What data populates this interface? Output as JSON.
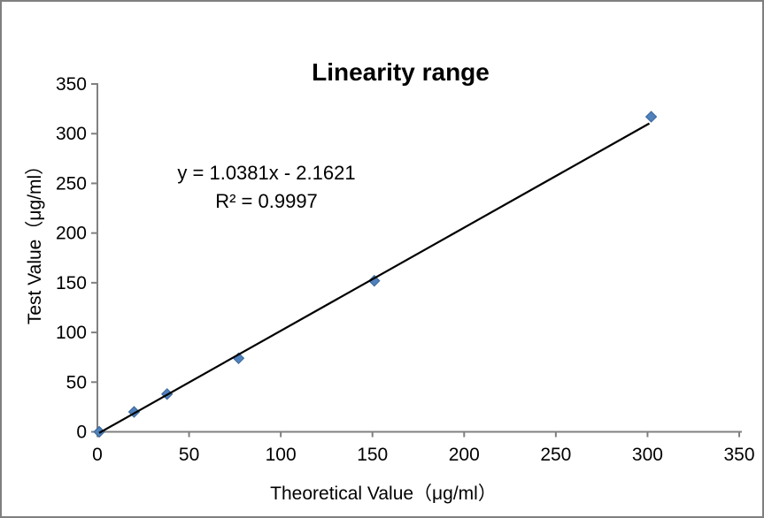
{
  "chart_data": {
    "type": "scatter",
    "title": "Linearity range",
    "xlabel": "Theoretical Value（μg/ml）",
    "ylabel": "Test Value（μg/ml）",
    "xlim": [
      0,
      350
    ],
    "ylim": [
      0,
      350
    ],
    "xticks": [
      0,
      50,
      100,
      150,
      200,
      250,
      300,
      350
    ],
    "yticks": [
      0,
      50,
      100,
      150,
      200,
      250,
      300,
      350
    ],
    "points": [
      {
        "x": 1,
        "y": 0
      },
      {
        "x": 20,
        "y": 20
      },
      {
        "x": 38,
        "y": 38
      },
      {
        "x": 77,
        "y": 74
      },
      {
        "x": 151,
        "y": 152
      },
      {
        "x": 302,
        "y": 317
      }
    ],
    "trendline": {
      "slope": 1.0381,
      "intercept": -2.1621,
      "x_start": 1,
      "x_end": 301,
      "color": "#000000"
    },
    "annotation": {
      "line1": "y = 1.0381x - 2.1621",
      "line2": "R² = 0.9997"
    },
    "marker": {
      "shape": "diamond",
      "fill": "#4F81BD",
      "stroke": "#3A6597",
      "size": 6
    },
    "axis_color": "#808080",
    "grid": false,
    "legend": false
  }
}
